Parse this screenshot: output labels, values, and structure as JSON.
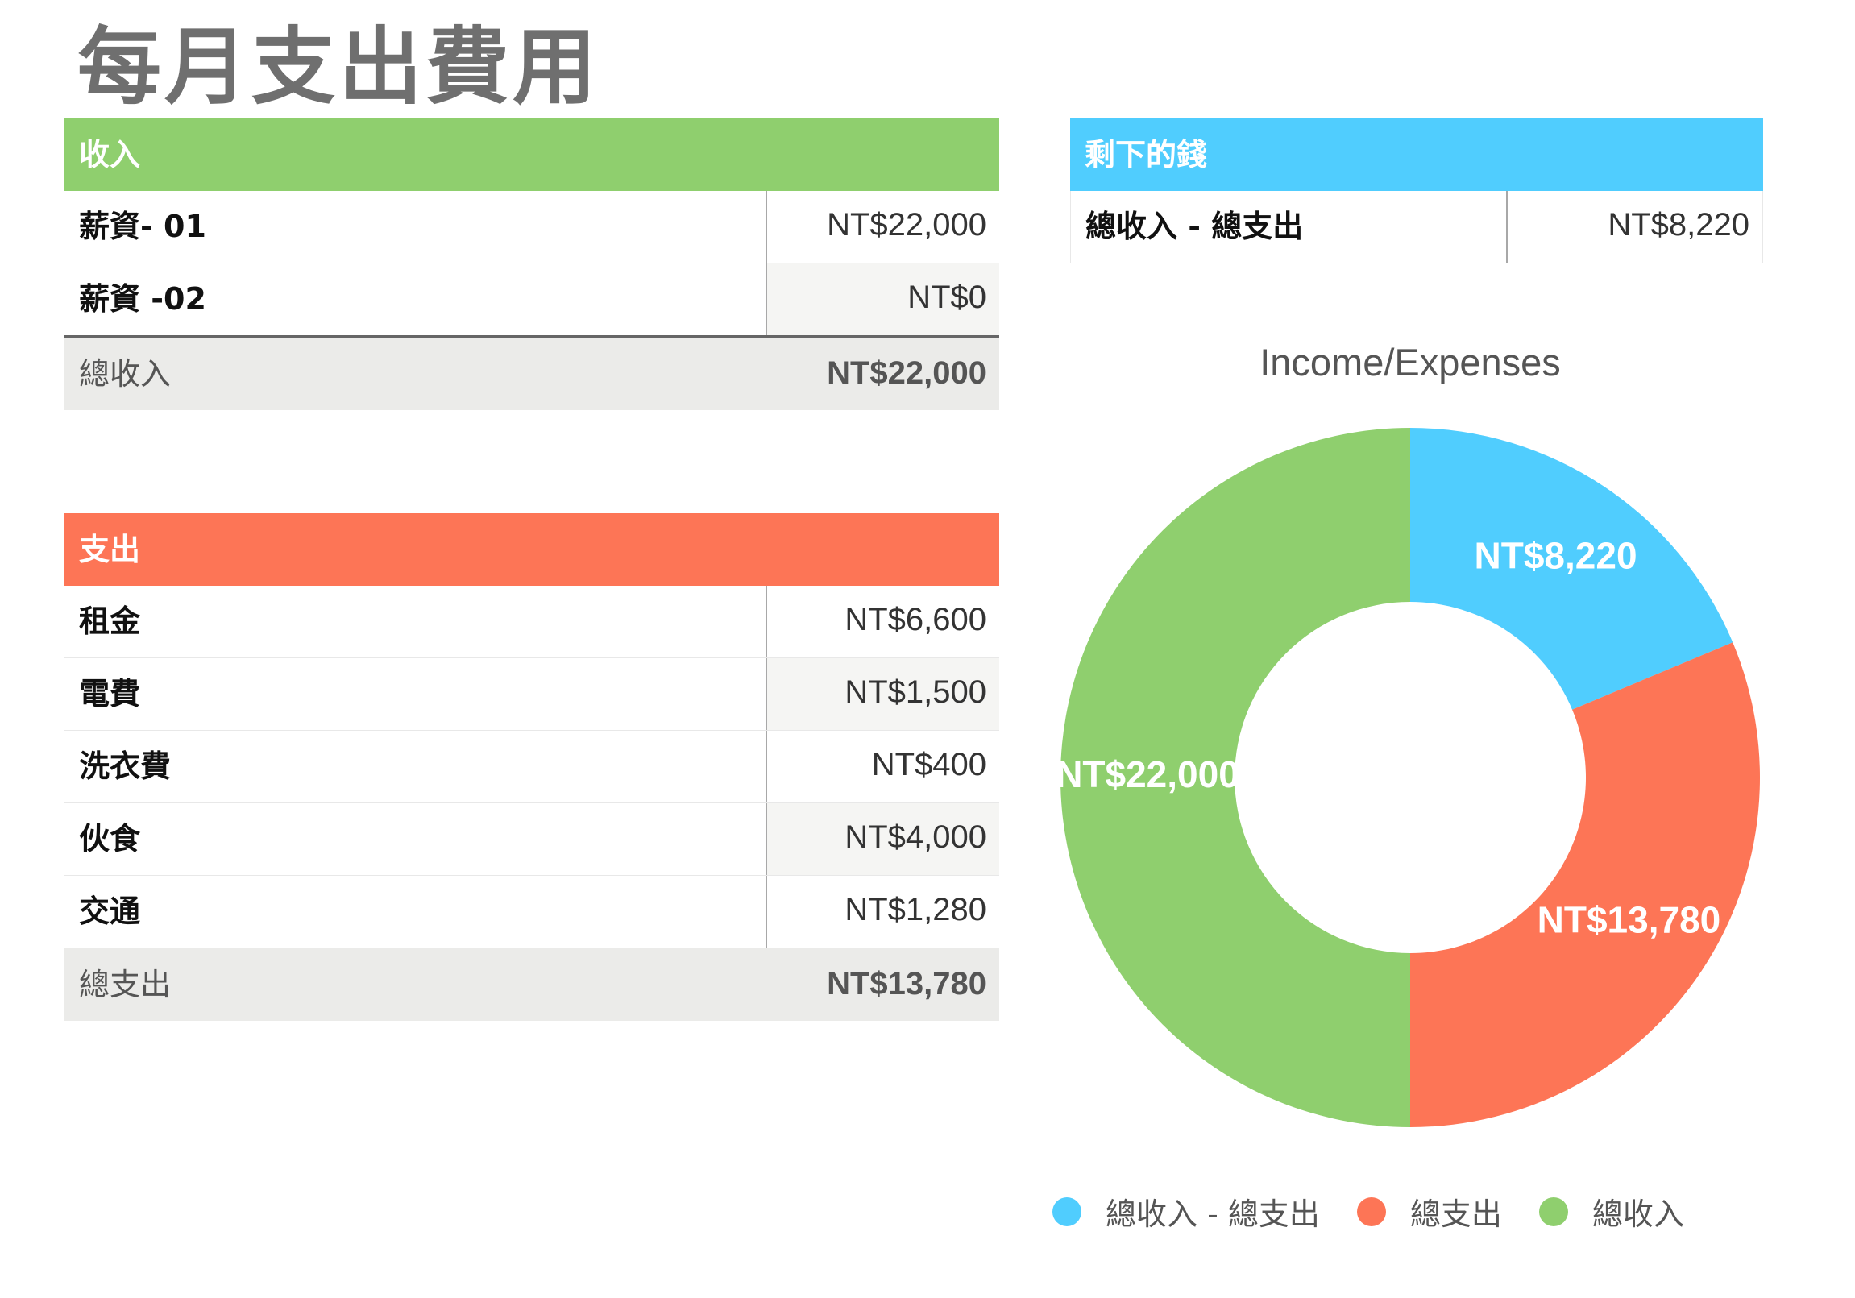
{
  "title": "每月支出費用",
  "colors": {
    "income": "#8fcf6e",
    "expense": "#fd7556",
    "remaining": "#50cdfe"
  },
  "income_table": {
    "header": "收入",
    "rows": [
      {
        "label": "薪資- 01",
        "value": "NT$22,000"
      },
      {
        "label": "薪資 -02",
        "value": "NT$0"
      }
    ],
    "total": {
      "label": "總收入",
      "value": "NT$22,000"
    }
  },
  "expense_table": {
    "header": "支出",
    "rows": [
      {
        "label": "租金",
        "value": "NT$6,600"
      },
      {
        "label": "電費",
        "value": "NT$1,500"
      },
      {
        "label": "洗衣費",
        "value": "NT$400"
      },
      {
        "label": "伙食",
        "value": "NT$4,000"
      },
      {
        "label": "交通",
        "value": "NT$1,280"
      }
    ],
    "total": {
      "label": "總支出",
      "value": "NT$13,780"
    }
  },
  "remaining_table": {
    "header": "剩下的錢",
    "rows": [
      {
        "label": "總收入 - 總支出",
        "value": "NT$8,220"
      }
    ]
  },
  "chart_data": {
    "type": "pie",
    "variant": "donut",
    "title": "Income/Expenses",
    "categories": [
      "總收入 - 總支出",
      "總支出",
      "總收入"
    ],
    "values": [
      8220,
      13780,
      22000
    ],
    "data_labels": [
      "NT$8,220",
      "NT$13,780",
      "NT$22,000"
    ],
    "colors": [
      "#50cdfe",
      "#fd7556",
      "#8fcf6e"
    ],
    "legend_position": "bottom"
  }
}
